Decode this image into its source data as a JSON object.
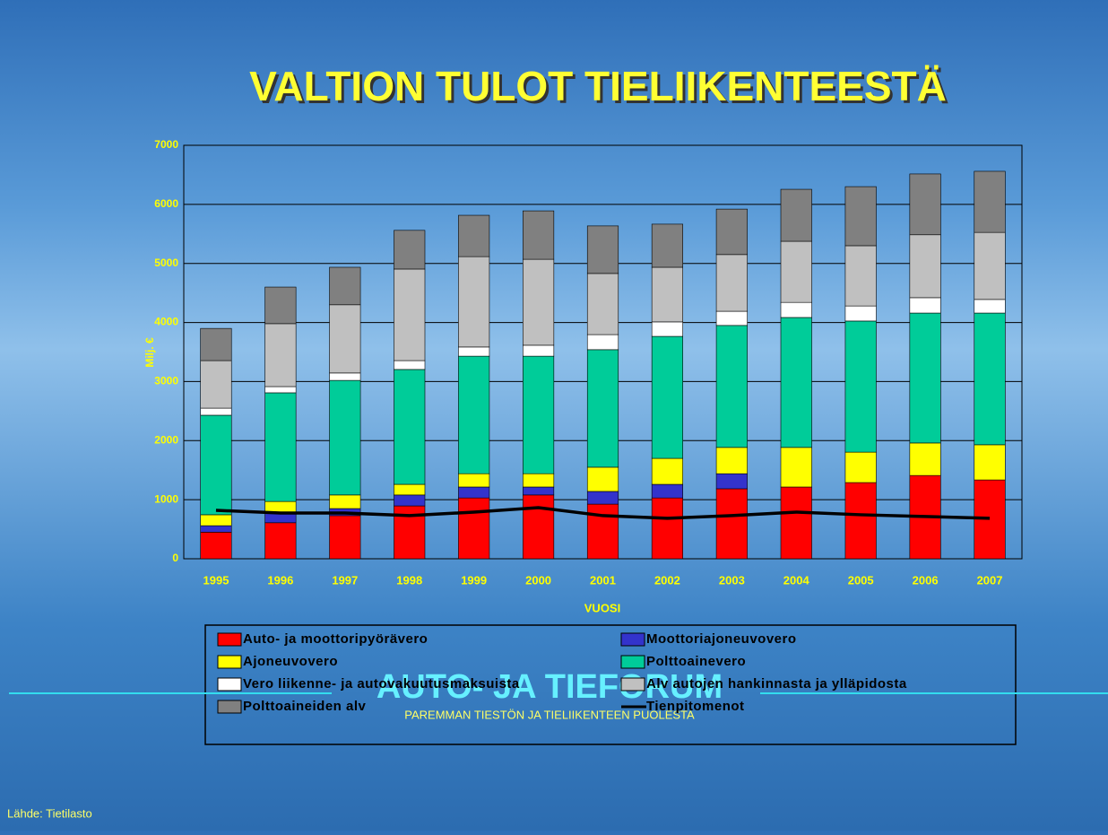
{
  "chart_data": {
    "type": "bar",
    "stacked": true,
    "title": "VALTION TULOT TIELIIKENTEESTÄ",
    "y_label": "Milj. €",
    "x_label": "VUOSI",
    "categories": [
      "1995",
      "1996",
      "1997",
      "1998",
      "1999",
      "2000",
      "2001",
      "2002",
      "2003",
      "2004",
      "2005",
      "2006",
      "2007"
    ],
    "ylim": [
      0,
      7000
    ],
    "yticks": [
      0,
      1000,
      2000,
      3000,
      4000,
      5000,
      6000,
      7000
    ],
    "grid": true,
    "series": [
      {
        "name": "Auto- ja moottoripyörävero",
        "color": "#ff0000",
        "values": [
          450,
          610,
          730,
          895,
          1030,
          1080,
          925,
          1030,
          1185,
          1215,
          1290,
          1410,
          1335
        ]
      },
      {
        "name": "Moottoriajoneuvovero",
        "color": "#3333cc",
        "values": [
          110,
          165,
          120,
          185,
          185,
          135,
          215,
          230,
          255,
          0,
          0,
          0,
          0
        ]
      },
      {
        "name": "Ajoneuvovero",
        "color": "#ffff00",
        "values": [
          185,
          195,
          230,
          180,
          225,
          225,
          410,
          440,
          445,
          670,
          515,
          550,
          595
        ]
      },
      {
        "name": "Polttoainevero",
        "color": "#00cc99",
        "values": [
          1685,
          1840,
          1940,
          1945,
          1990,
          1990,
          1990,
          2065,
          2065,
          2200,
          2220,
          2200,
          2230
        ]
      },
      {
        "name": "Vero liikenne- ja autovakuutusmaksuista",
        "color": "#ffffff",
        "values": [
          120,
          105,
          125,
          150,
          155,
          185,
          255,
          245,
          240,
          255,
          255,
          260,
          230
        ]
      },
      {
        "name": "Alv autojen hankinnasta ja ylläpidosta",
        "color": "#c0c0c0",
        "values": [
          805,
          1065,
          1155,
          1550,
          1530,
          1455,
          1035,
          925,
          960,
          1035,
          1020,
          1065,
          1135
        ]
      },
      {
        "name": "Polttoaineiden alv",
        "color": "#808080",
        "values": [
          545,
          620,
          635,
          655,
          700,
          820,
          805,
          730,
          770,
          880,
          1000,
          1030,
          1035
        ]
      },
      {
        "name": "Tienpitomenot",
        "type": "line",
        "color": "#000000",
        "values": [
          820,
          775,
          775,
          730,
          790,
          865,
          730,
          685,
          730,
          790,
          745,
          715,
          685
        ]
      }
    ]
  },
  "footer": {
    "brand": "AUTO- JA TIEFORUM",
    "tagline": "PAREMMAN TIESTÖN JA TIELIIKENTEEN PUOLESTA",
    "source": "Lähde: Tietilasto"
  }
}
